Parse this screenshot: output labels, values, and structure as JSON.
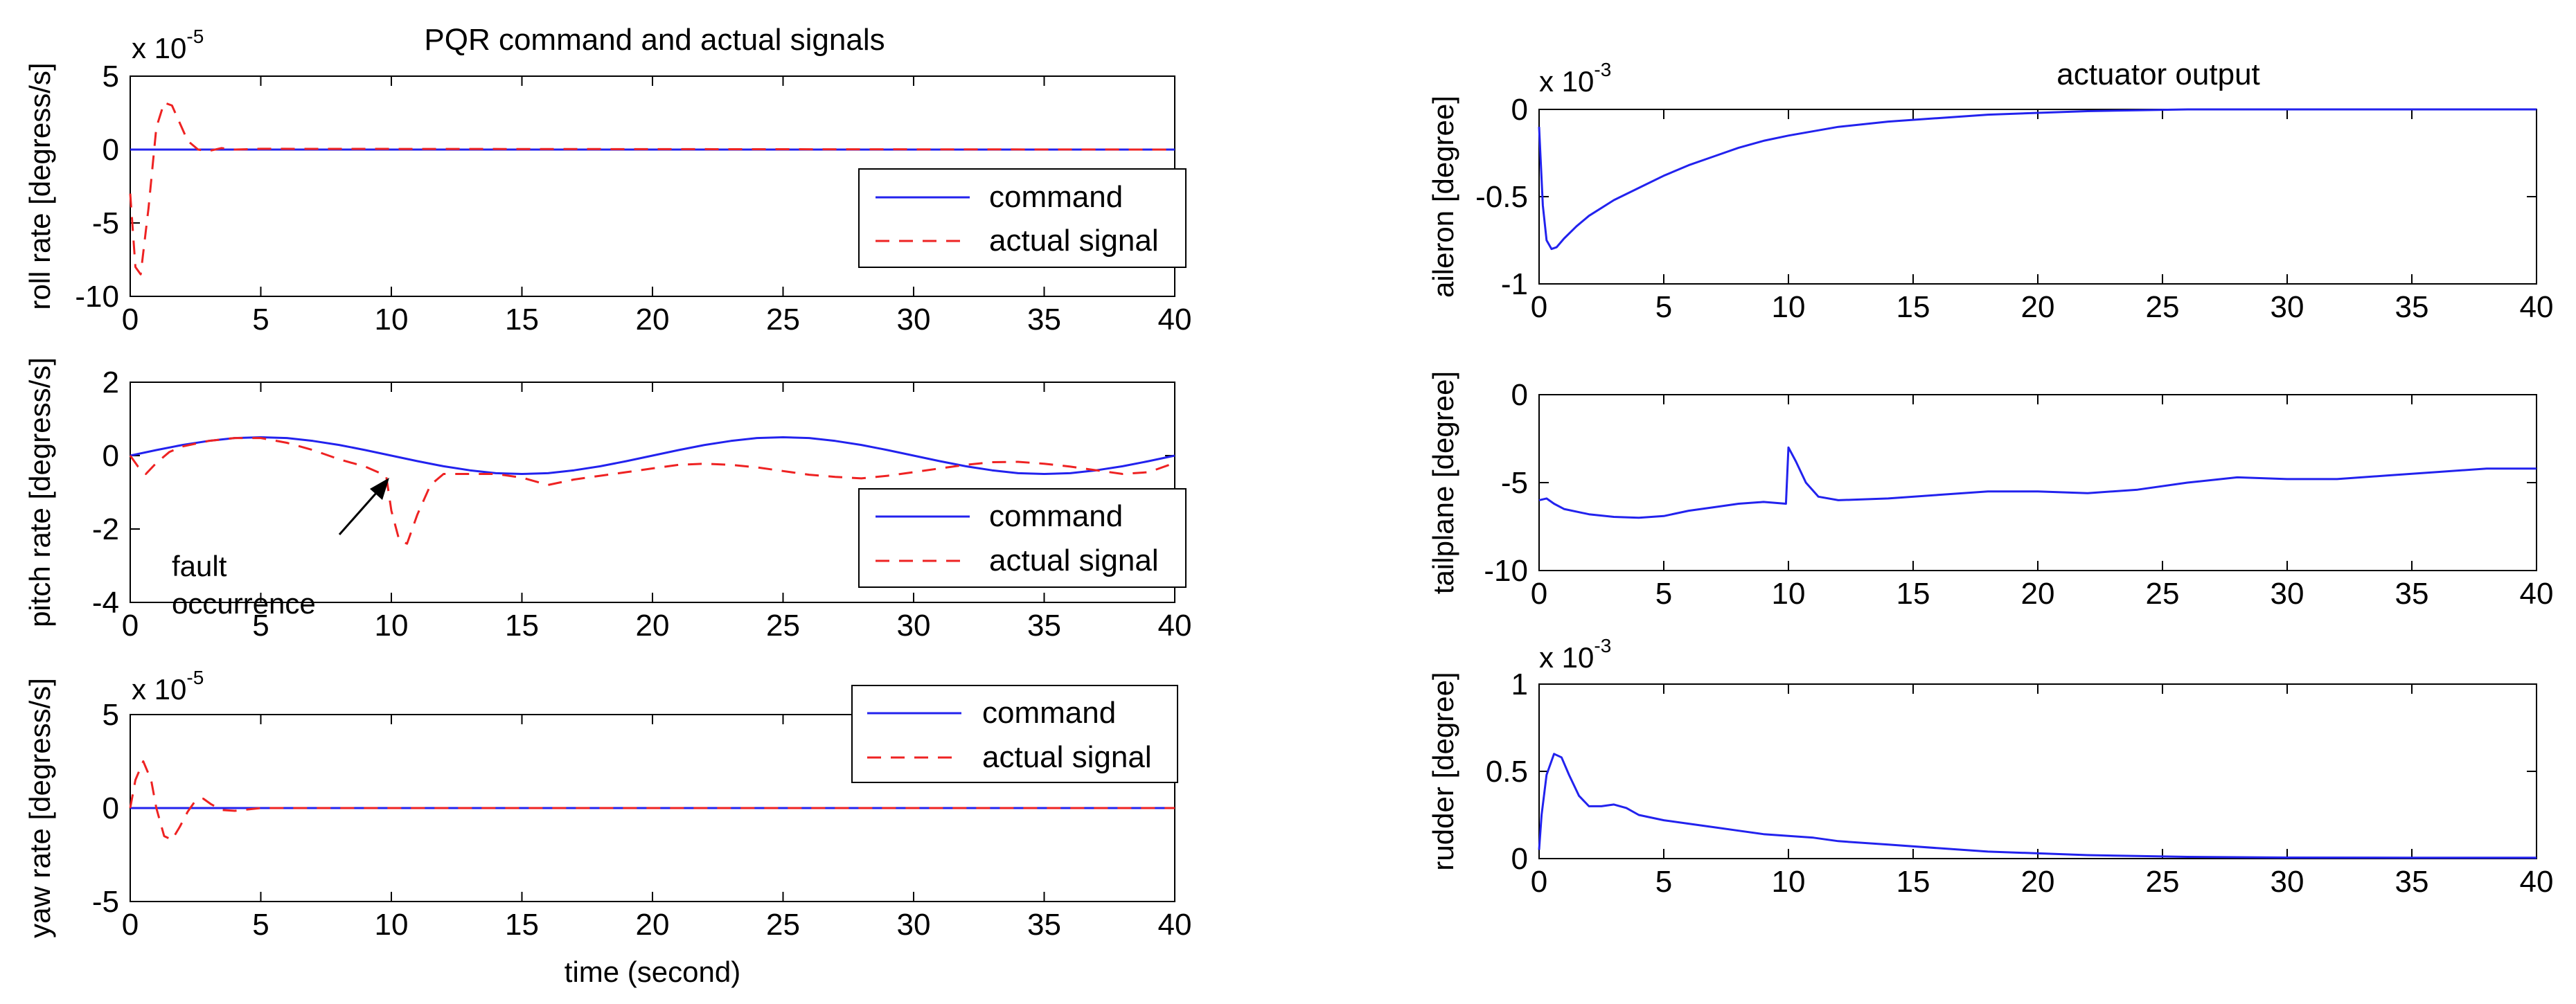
{
  "figure_left_title": "PQR command and actual signals",
  "figure_right_title": "actuator output",
  "colors": {
    "command": "#2222ee",
    "actual": "#ee2222",
    "axis": "#000000"
  },
  "chart_data": [
    {
      "id": "roll",
      "type": "line",
      "title": "PQR command and actual signals",
      "ylabel": "roll rate [degress/s]",
      "xlabel": "",
      "exponent_base": "x 10",
      "exponent_power": "-5",
      "xlim": [
        0,
        40
      ],
      "ylim": [
        -10,
        5
      ],
      "xticks": [
        "0",
        "5",
        "10",
        "15",
        "20",
        "25",
        "30",
        "35",
        "40"
      ],
      "yticks": [
        "5",
        "0",
        "-5",
        "-10"
      ],
      "legend": [
        "command",
        "actual signal"
      ],
      "series": [
        {
          "name": "command",
          "style": "solid",
          "color": "#2222ee",
          "x": [
            0,
            40
          ],
          "y": [
            0,
            0
          ]
        },
        {
          "name": "actual signal",
          "style": "dashed",
          "color": "#ee2222",
          "x": [
            0,
            0.2,
            0.4,
            0.7,
            1.0,
            1.3,
            1.6,
            1.9,
            2.2,
            2.6,
            3.0,
            3.5,
            4.0,
            5,
            40
          ],
          "y": [
            -3,
            -8,
            -8.5,
            -4,
            1.5,
            3.2,
            3.0,
            1.8,
            0.6,
            0,
            -0.1,
            0.1,
            0,
            0.05,
            0
          ]
        }
      ]
    },
    {
      "id": "pitch",
      "type": "line",
      "ylabel": "pitch rate [degress/s]",
      "xlabel": "",
      "xlim": [
        0,
        40
      ],
      "ylim": [
        -4,
        2
      ],
      "xticks": [
        "0",
        "5",
        "10",
        "15",
        "20",
        "25",
        "30",
        "35",
        "40"
      ],
      "yticks": [
        "2",
        "0",
        "-2",
        "-4"
      ],
      "legend": [
        "command",
        "actual signal"
      ],
      "annotation": {
        "line1": "fault",
        "line2": "occurrence",
        "x": 9.8,
        "y": -0.4
      },
      "series": [
        {
          "name": "command",
          "style": "solid",
          "color": "#2222ee",
          "x": [
            0,
            1,
            2,
            3,
            4,
            5,
            6,
            7,
            8,
            9,
            10,
            11,
            12,
            13,
            14,
            15,
            16,
            17,
            18,
            19,
            20,
            21,
            22,
            23,
            24,
            25,
            26,
            27,
            28,
            29,
            30,
            31,
            32,
            33,
            34,
            35,
            36,
            37,
            38,
            39,
            40
          ],
          "y": [
            0,
            0.15,
            0.29,
            0.4,
            0.48,
            0.5,
            0.48,
            0.4,
            0.29,
            0.15,
            0,
            -0.15,
            -0.29,
            -0.4,
            -0.48,
            -0.5,
            -0.48,
            -0.4,
            -0.29,
            -0.15,
            0,
            0.15,
            0.29,
            0.4,
            0.48,
            0.5,
            0.48,
            0.4,
            0.29,
            0.15,
            0,
            -0.15,
            -0.29,
            -0.4,
            -0.48,
            -0.5,
            -0.48,
            -0.4,
            -0.29,
            -0.15,
            0
          ]
        },
        {
          "name": "actual signal",
          "style": "dashed",
          "color": "#ee2222",
          "x": [
            0,
            0.3,
            0.6,
            1,
            1.5,
            2,
            3,
            4,
            5,
            6,
            7,
            8,
            9,
            9.8,
            10,
            10.3,
            10.6,
            11,
            11.5,
            12,
            13,
            14,
            15,
            16,
            17,
            18,
            19,
            20,
            21,
            22,
            23,
            24,
            25,
            26,
            27,
            28,
            29,
            30,
            31,
            32,
            33,
            34,
            35,
            36,
            37,
            38,
            39,
            40
          ],
          "y": [
            0,
            -0.3,
            -0.5,
            -0.2,
            0.1,
            0.25,
            0.4,
            0.48,
            0.48,
            0.35,
            0.15,
            -0.1,
            -0.3,
            -0.55,
            -1.5,
            -2.3,
            -2.4,
            -1.6,
            -0.8,
            -0.5,
            -0.5,
            -0.5,
            -0.6,
            -0.8,
            -0.65,
            -0.55,
            -0.45,
            -0.35,
            -0.25,
            -0.22,
            -0.25,
            -0.32,
            -0.42,
            -0.52,
            -0.58,
            -0.62,
            -0.55,
            -0.45,
            -0.35,
            -0.25,
            -0.18,
            -0.17,
            -0.22,
            -0.3,
            -0.4,
            -0.5,
            -0.45,
            -0.2
          ]
        }
      ]
    },
    {
      "id": "yaw",
      "type": "line",
      "ylabel": "yaw rate [degress/s]",
      "xlabel": "time (second)",
      "exponent_base": "x 10",
      "exponent_power": "-5",
      "xlim": [
        0,
        40
      ],
      "ylim": [
        -5,
        5
      ],
      "xticks": [
        "0",
        "5",
        "10",
        "15",
        "20",
        "25",
        "30",
        "35",
        "40"
      ],
      "yticks": [
        "5",
        "0",
        "-5"
      ],
      "legend": [
        "command",
        "actual signal"
      ],
      "series": [
        {
          "name": "command",
          "style": "solid",
          "color": "#2222ee",
          "x": [
            0,
            40
          ],
          "y": [
            0,
            0
          ]
        },
        {
          "name": "actual signal",
          "style": "dashed",
          "color": "#ee2222",
          "x": [
            0,
            0.2,
            0.5,
            0.8,
            1.0,
            1.3,
            1.6,
            1.9,
            2.2,
            2.5,
            2.8,
            3.1,
            3.5,
            4.0,
            5,
            40
          ],
          "y": [
            0,
            1.5,
            2.5,
            1.5,
            0,
            -1.5,
            -1.7,
            -1.0,
            -0.2,
            0.4,
            0.5,
            0.2,
            -0.1,
            -0.15,
            0,
            0
          ]
        }
      ]
    },
    {
      "id": "aileron",
      "type": "line",
      "title": "actuator output",
      "ylabel": "aileron [degree]",
      "xlabel": "",
      "exponent_base": "x 10",
      "exponent_power": "-3",
      "xlim": [
        0,
        40
      ],
      "ylim": [
        -1,
        0
      ],
      "xticks": [
        "0",
        "5",
        "10",
        "15",
        "20",
        "25",
        "30",
        "35",
        "40"
      ],
      "yticks": [
        "0",
        "-0.5",
        "-1"
      ],
      "series": [
        {
          "name": "aileron",
          "style": "solid",
          "color": "#2222ee",
          "x": [
            0,
            0.15,
            0.3,
            0.5,
            0.7,
            1.0,
            1.5,
            2,
            3,
            4,
            5,
            6,
            7,
            8,
            9,
            10,
            12,
            14,
            16,
            18,
            20,
            22,
            24,
            26,
            28,
            30,
            35,
            40
          ],
          "y": [
            -0.1,
            -0.55,
            -0.75,
            -0.8,
            -0.79,
            -0.74,
            -0.67,
            -0.61,
            -0.52,
            -0.45,
            -0.38,
            -0.32,
            -0.27,
            -0.22,
            -0.18,
            -0.15,
            -0.1,
            -0.07,
            -0.05,
            -0.03,
            -0.02,
            -0.01,
            -0.005,
            0,
            0,
            0,
            0,
            0
          ]
        }
      ]
    },
    {
      "id": "tailplane",
      "type": "line",
      "ylabel": "tailplane [degree]",
      "xlabel": "",
      "xlim": [
        0,
        40
      ],
      "ylim": [
        -10,
        0
      ],
      "xticks": [
        "0",
        "5",
        "10",
        "15",
        "20",
        "25",
        "30",
        "35",
        "40"
      ],
      "yticks": [
        "0",
        "-5",
        "-10"
      ],
      "series": [
        {
          "name": "tailplane",
          "style": "solid",
          "color": "#2222ee",
          "x": [
            0,
            0.3,
            0.6,
            1,
            2,
            3,
            4,
            5,
            6,
            7,
            8,
            9,
            9.9,
            10.0,
            10.3,
            10.7,
            11.2,
            12,
            14,
            16,
            18,
            20,
            22,
            24,
            26,
            28,
            30,
            32,
            34,
            36,
            38,
            40
          ],
          "y": [
            -6.0,
            -5.9,
            -6.2,
            -6.5,
            -6.8,
            -6.95,
            -7.0,
            -6.9,
            -6.6,
            -6.4,
            -6.2,
            -6.1,
            -6.2,
            -3.0,
            -3.8,
            -5.0,
            -5.8,
            -6.0,
            -5.9,
            -5.7,
            -5.5,
            -5.5,
            -5.6,
            -5.4,
            -5.0,
            -4.7,
            -4.8,
            -4.8,
            -4.6,
            -4.4,
            -4.2,
            -4.2
          ]
        }
      ]
    },
    {
      "id": "rudder",
      "type": "line",
      "ylabel": "rudder [degree]",
      "xlabel": "",
      "exponent_base": "x 10",
      "exponent_power": "-3",
      "xlim": [
        0,
        40
      ],
      "ylim": [
        0,
        1
      ],
      "xticks": [
        "0",
        "5",
        "10",
        "15",
        "20",
        "25",
        "30",
        "35",
        "40"
      ],
      "yticks": [
        "1",
        "0.5",
        "0"
      ],
      "series": [
        {
          "name": "rudder",
          "style": "solid",
          "color": "#2222ee",
          "x": [
            0,
            0.1,
            0.3,
            0.6,
            0.9,
            1.2,
            1.6,
            2.0,
            2.5,
            3.0,
            3.5,
            4,
            5,
            6,
            7,
            8,
            9,
            10,
            11,
            12,
            14,
            16,
            18,
            20,
            22,
            24,
            26,
            28,
            30,
            35,
            40
          ],
          "y": [
            0.05,
            0.25,
            0.48,
            0.6,
            0.58,
            0.48,
            0.36,
            0.3,
            0.3,
            0.31,
            0.29,
            0.25,
            0.22,
            0.2,
            0.18,
            0.16,
            0.14,
            0.13,
            0.12,
            0.1,
            0.08,
            0.06,
            0.04,
            0.03,
            0.02,
            0.015,
            0.01,
            0.008,
            0.006,
            0.005,
            0.005
          ]
        }
      ]
    }
  ]
}
